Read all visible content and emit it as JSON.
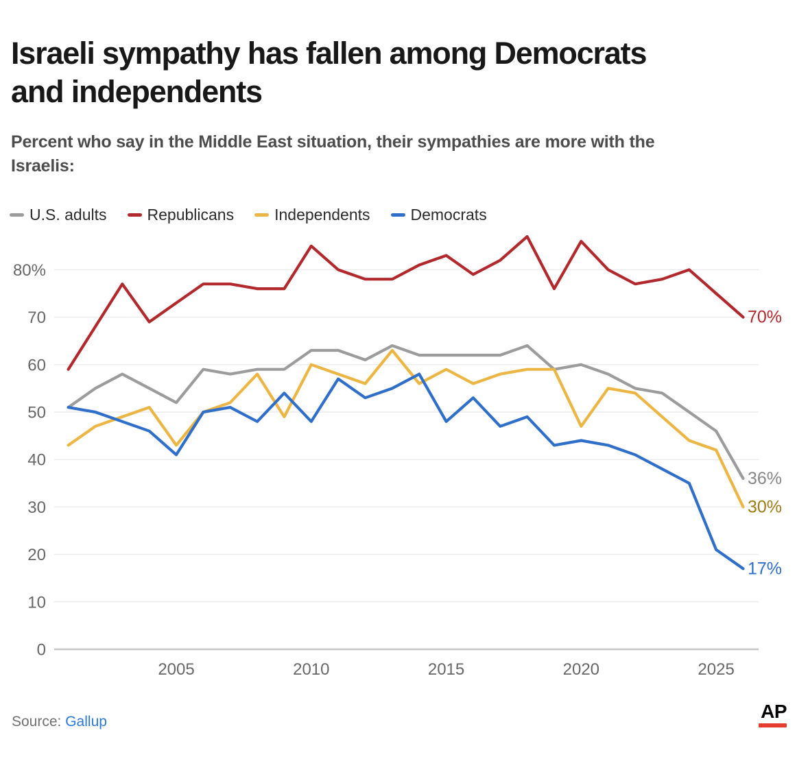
{
  "header": {
    "title_line1": "Israeli sympathy has fallen among Democrats",
    "title_line2": "and independents",
    "subtitle_line1": "Percent who say in the Middle East situation, their sympathies are more with the",
    "subtitle_line2": "Israelis:"
  },
  "chart_data": {
    "type": "line",
    "title": "Israeli sympathy has fallen among Democrats and independents",
    "subtitle": "Percent who say in the Middle East situation, their sympathies are more with the Israelis:",
    "xlabel": "",
    "ylabel": "",
    "x": [
      2001,
      2002,
      2003,
      2004,
      2005,
      2006,
      2007,
      2008,
      2009,
      2010,
      2011,
      2012,
      2013,
      2014,
      2015,
      2016,
      2017,
      2018,
      2019,
      2020,
      2021,
      2022,
      2023,
      2024,
      2025,
      2026
    ],
    "series": [
      {
        "name": "U.S. adults",
        "color": "#9c9c9c",
        "label_color": "#868686",
        "end_label": "36%",
        "values": [
          51,
          55,
          58,
          55,
          52,
          59,
          58,
          59,
          59,
          63,
          63,
          61,
          64,
          62,
          62,
          62,
          62,
          64,
          59,
          60,
          58,
          55,
          54,
          50,
          46,
          36
        ]
      },
      {
        "name": "Republicans",
        "color": "#b2292d",
        "label_color": "#b2292d",
        "end_label": "70%",
        "values": [
          59,
          68,
          77,
          69,
          73,
          77,
          77,
          76,
          76,
          85,
          80,
          78,
          78,
          81,
          83,
          79,
          82,
          87,
          76,
          86,
          80,
          77,
          78,
          80,
          75,
          70
        ]
      },
      {
        "name": "Independents",
        "color": "#ecb645",
        "label_color": "#9d7b17",
        "end_label": "30%",
        "values": [
          43,
          47,
          49,
          51,
          43,
          50,
          52,
          58,
          49,
          60,
          58,
          56,
          63,
          56,
          59,
          56,
          58,
          59,
          59,
          47,
          55,
          54,
          49,
          44,
          42,
          30
        ]
      },
      {
        "name": "Democrats",
        "color": "#2f6fc9",
        "label_color": "#2f6fc9",
        "end_label": "17%",
        "values": [
          51,
          50,
          48,
          46,
          41,
          50,
          51,
          48,
          54,
          48,
          57,
          53,
          55,
          58,
          48,
          53,
          47,
          49,
          43,
          44,
          43,
          41,
          38,
          35,
          21,
          17
        ]
      }
    ],
    "y_ticks": [
      {
        "v": 80,
        "label": "80%"
      },
      {
        "v": 70,
        "label": "70"
      },
      {
        "v": 60,
        "label": "60"
      },
      {
        "v": 50,
        "label": "50"
      },
      {
        "v": 40,
        "label": "40"
      },
      {
        "v": 30,
        "label": "30"
      },
      {
        "v": 20,
        "label": "20"
      },
      {
        "v": 10,
        "label": "10"
      },
      {
        "v": 0,
        "label": "0"
      }
    ],
    "x_ticks": [
      {
        "v": 2005,
        "label": "2005"
      },
      {
        "v": 2010,
        "label": "2010"
      },
      {
        "v": 2015,
        "label": "2015"
      },
      {
        "v": 2020,
        "label": "2020"
      },
      {
        "v": 2025,
        "label": "2025"
      }
    ],
    "ylim": [
      0,
      88
    ],
    "xlim": [
      2001,
      2026
    ],
    "grid": "horizontal",
    "legend_position": "top"
  },
  "footer": {
    "source_prefix": "Source:",
    "source_link": "Gallup",
    "ap_logo": "AP"
  }
}
